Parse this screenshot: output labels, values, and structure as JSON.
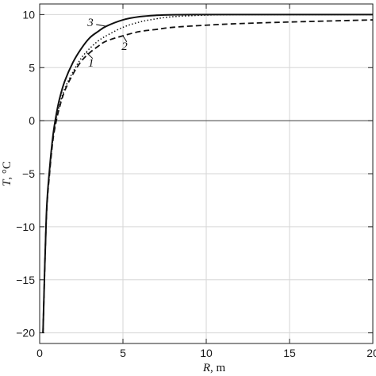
{
  "chart_data": {
    "type": "line",
    "xlabel": "R, m",
    "xlabel_italic": "R",
    "xlabel_rest": ", m",
    "ylabel": "T, °C",
    "xlim": [
      0,
      20
    ],
    "ylim": [
      -21,
      11
    ],
    "x_ticks": [
      0,
      5,
      10,
      15,
      20
    ],
    "x_tick_labels": [
      "0",
      "5",
      "10",
      "15",
      "20"
    ],
    "y_ticks": [
      -20,
      -15,
      -10,
      -5,
      0,
      5,
      10
    ],
    "y_tick_labels": [
      "−20",
      "−15",
      "−10",
      "−5",
      "0",
      "5",
      "10"
    ],
    "grid": true,
    "zero_line": true,
    "series": [
      {
        "name": "1",
        "style": "dotted",
        "x": [
          0.2,
          0.4,
          0.6,
          0.8,
          1.0,
          1.2,
          1.5,
          2.0,
          2.5,
          3.0,
          3.5,
          4.0,
          5.0,
          6.0,
          7.0,
          8.0,
          10.0,
          12.0,
          15.0,
          20.0
        ],
        "y": [
          -20,
          -9.2,
          -4.7,
          -1.6,
          0.2,
          1.5,
          3.0,
          4.6,
          5.9,
          6.8,
          7.5,
          8.0,
          8.8,
          9.3,
          9.6,
          9.8,
          9.95,
          10.0,
          10.0,
          10.0
        ]
      },
      {
        "name": "2",
        "style": "dashed",
        "x": [
          0.2,
          0.4,
          0.6,
          0.8,
          1.0,
          1.2,
          1.5,
          2.0,
          2.5,
          3.0,
          3.5,
          4.0,
          5.0,
          6.0,
          7.0,
          8.0,
          10.0,
          12.0,
          15.0,
          20.0
        ],
        "y": [
          -20,
          -9.3,
          -4.9,
          -1.8,
          0.0,
          1.3,
          2.8,
          4.4,
          5.6,
          6.4,
          7.0,
          7.5,
          8.0,
          8.4,
          8.6,
          8.8,
          9.0,
          9.15,
          9.3,
          9.5
        ]
      },
      {
        "name": "3",
        "style": "solid",
        "x": [
          0.2,
          0.4,
          0.6,
          0.8,
          1.0,
          1.2,
          1.5,
          2.0,
          2.5,
          3.0,
          3.5,
          4.0,
          5.0,
          6.0,
          7.0,
          8.0,
          10.0,
          12.0,
          15.0,
          20.0
        ],
        "y": [
          -20,
          -9.0,
          -4.5,
          -1.4,
          0.6,
          2.1,
          3.7,
          5.5,
          6.8,
          7.8,
          8.4,
          8.9,
          9.5,
          9.8,
          9.93,
          9.98,
          10.0,
          10.0,
          10.0,
          10.0
        ]
      }
    ],
    "curve_labels": [
      {
        "text": "3",
        "series": "3",
        "x": 3.3,
        "y": 7.8
      },
      {
        "text": "2",
        "series": "2",
        "x": 5.6,
        "y": 7.9
      },
      {
        "text": "1",
        "series": "1",
        "x": 3.1,
        "y": 5.2
      }
    ]
  }
}
